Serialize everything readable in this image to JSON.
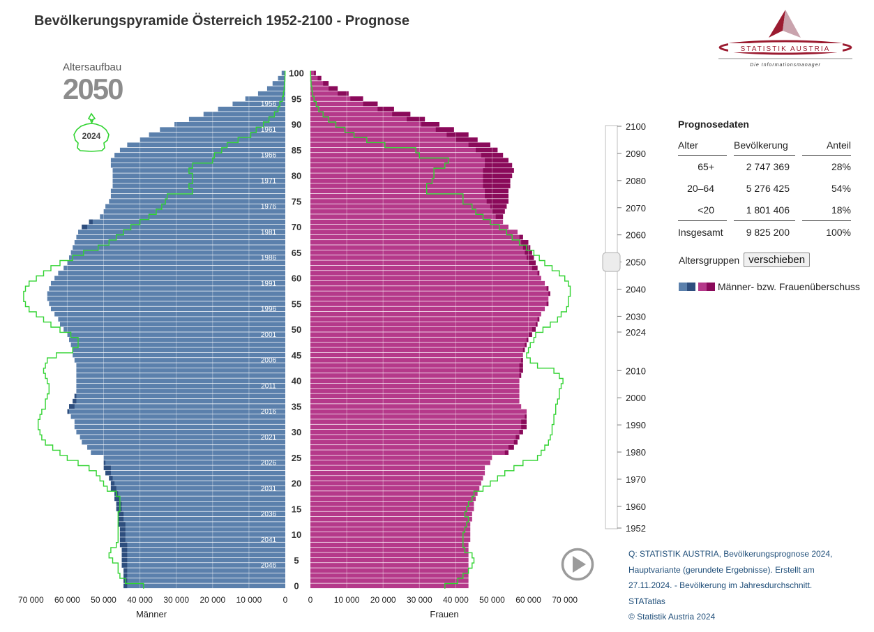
{
  "title": "Bevölkerungspyramide Österreich 1952-2100 - Prognose",
  "logo": {
    "name": "STATISTIK AUSTRIA",
    "tagline": "Die Informationsmanager"
  },
  "colors": {
    "male": "#5b80ac",
    "male_surplus": "#2e4e7e",
    "female": "#b5398a",
    "female_surplus": "#8a0a5a",
    "outline": "#31d331"
  },
  "chart_data": {
    "type": "bar",
    "subtype": "population-pyramid",
    "title": "Bevölkerungspyramide Österreich 1952-2100 - Prognose",
    "header_label": "Altersaufbau",
    "year": "2050",
    "comparison_year": "2024",
    "xlabel_left": "Männer",
    "xlabel_right": "Frauen",
    "xlim": [
      0,
      70000
    ],
    "x_ticks_left": [
      "70 000",
      "60 000",
      "50 000",
      "40 000",
      "30 000",
      "20 000",
      "10 000",
      "0"
    ],
    "x_ticks_right": [
      "0",
      "10 000",
      "20 000",
      "30 000",
      "40 000",
      "50 000",
      "60 000",
      "70 000"
    ],
    "age_ticks": [
      "100",
      "95",
      "90",
      "85",
      "80",
      "75",
      "70",
      "65",
      "60",
      "55",
      "50",
      "45",
      "40",
      "35",
      "30",
      "25",
      "20",
      "15",
      "10",
      "5",
      "0"
    ],
    "birth_year_labels": [
      "1956",
      "1961",
      "1966",
      "1971",
      "1976",
      "1981",
      "1986",
      "1991",
      "1996",
      "2001",
      "2006",
      "2011",
      "2016",
      "2021",
      "2026",
      "2031",
      "2036",
      "2041",
      "2046"
    ],
    "male_values": [
      44500,
      44500,
      44500,
      44500,
      45000,
      45000,
      45000,
      45000,
      45500,
      45500,
      45500,
      45500,
      46000,
      46000,
      46000,
      46500,
      46500,
      47000,
      47000,
      48000,
      48000,
      48500,
      49500,
      50000,
      50000,
      50000,
      53500,
      54500,
      56000,
      56500,
      57500,
      58000,
      58000,
      59000,
      60000,
      59500,
      58500,
      58000,
      57500,
      57500,
      57500,
      57500,
      57500,
      57500,
      58000,
      58500,
      58500,
      59000,
      59500,
      60000,
      61000,
      62000,
      62500,
      63500,
      64500,
      65000,
      65500,
      65500,
      65000,
      64500,
      63500,
      62500,
      61000,
      60000,
      59500,
      59000,
      58500,
      58000,
      57500,
      57000,
      56000,
      54000,
      51000,
      50000,
      49500,
      48500,
      48000,
      48000,
      47500,
      47500,
      47500,
      47500,
      48000,
      48000,
      47000,
      45500,
      43500,
      40000,
      37500,
      34500,
      30500,
      26500,
      22500,
      18500,
      14500,
      11000,
      7500,
      5000,
      3500,
      2000,
      1000
    ],
    "female_values": [
      43500,
      43500,
      43500,
      43500,
      43500,
      43500,
      43500,
      43500,
      43500,
      44000,
      44000,
      44000,
      44000,
      44500,
      44500,
      45000,
      45000,
      45500,
      46000,
      46500,
      47000,
      47500,
      48000,
      48000,
      49500,
      50000,
      54500,
      56000,
      57000,
      57500,
      58500,
      59500,
      59500,
      59500,
      59500,
      58000,
      57500,
      57500,
      57500,
      57500,
      57500,
      58000,
      58500,
      58500,
      58500,
      58500,
      59000,
      59500,
      60000,
      61000,
      62000,
      62500,
      63000,
      63500,
      64500,
      65500,
      65500,
      66000,
      65500,
      64500,
      63500,
      63000,
      62500,
      62000,
      61500,
      61000,
      60500,
      60000,
      58500,
      57000,
      54500,
      53000,
      53000,
      53500,
      54000,
      54500,
      54500,
      54500,
      55000,
      55000,
      55500,
      56000,
      55500,
      54500,
      53000,
      51500,
      49500,
      46000,
      43500,
      39500,
      35500,
      31500,
      27500,
      23000,
      18500,
      14500,
      10500,
      7500,
      5000,
      3000,
      1500
    ],
    "compare_male_2024": [
      39000,
      44000,
      45500,
      46000,
      46000,
      47500,
      48500,
      48000,
      46500,
      46000,
      46000,
      46000,
      46000,
      46000,
      46000,
      45500,
      45500,
      45500,
      46500,
      49000,
      50000,
      51000,
      52000,
      54000,
      57000,
      60000,
      62000,
      64000,
      66000,
      67000,
      67500,
      68000,
      68000,
      67500,
      67000,
      66000,
      66000,
      65500,
      65000,
      65000,
      65500,
      66000,
      66500,
      66000,
      65500,
      63000,
      58500,
      57000,
      57000,
      59000,
      62000,
      64500,
      66500,
      68500,
      70500,
      71500,
      72000,
      72000,
      71500,
      70500,
      68500,
      66500,
      64500,
      62000,
      58500,
      55500,
      51500,
      48500,
      46500,
      44500,
      42500,
      40000,
      37500,
      35500,
      34000,
      33000,
      32500,
      25500,
      26500,
      25500,
      25500,
      26500,
      25500,
      20000,
      19500,
      17500,
      16000,
      13000,
      9500,
      8000,
      6000,
      4500,
      3000,
      2000,
      1500,
      800,
      500,
      300,
      200,
      100,
      50
    ],
    "compare_female_2024": [
      37000,
      40500,
      42000,
      43500,
      44500,
      45000,
      44500,
      42500,
      42000,
      42000,
      42000,
      42500,
      43000,
      43500,
      42500,
      43000,
      43500,
      44500,
      45000,
      47500,
      49500,
      51500,
      53500,
      56000,
      58500,
      62500,
      63500,
      64500,
      65500,
      66000,
      66500,
      66500,
      67000,
      67000,
      67500,
      67500,
      68000,
      68500,
      68500,
      69000,
      69500,
      68500,
      67000,
      62500,
      60500,
      59500,
      60000,
      60500,
      61500,
      62000,
      64000,
      66000,
      68000,
      69000,
      70500,
      71000,
      71000,
      71500,
      71500,
      71000,
      70000,
      68500,
      66500,
      64500,
      63000,
      61500,
      59500,
      57500,
      55500,
      54000,
      52000,
      49500,
      47500,
      45500,
      44500,
      42000,
      42000,
      32000,
      32000,
      33500,
      34000,
      34000,
      37000,
      38000,
      30000,
      29000,
      20500,
      15500,
      12000,
      9500,
      7000,
      5000,
      3500,
      2300,
      1600,
      1000,
      600,
      400,
      200,
      100,
      50
    ]
  },
  "slider": {
    "years": [
      "2100",
      "2090",
      "2080",
      "2070",
      "2060",
      "2050",
      "2040",
      "2030",
      "2024",
      "2010",
      "2000",
      "1990",
      "1980",
      "1970",
      "1960",
      "1952"
    ],
    "min_year": 1952,
    "max_year": 2100,
    "current_year": 2050
  },
  "prognose": {
    "heading": "Prognosedaten",
    "columns": [
      "Alter",
      "Bevölkerung",
      "Anteil"
    ],
    "rows": [
      {
        "alter": "65+",
        "bev": "2 747 369",
        "anteil": "28%"
      },
      {
        "alter": "20–64",
        "bev": "5 276 425",
        "anteil": "54%"
      },
      {
        "alter": "<20",
        "bev": "1 801 406",
        "anteil": "18%"
      }
    ],
    "total": {
      "alter": "Insgesamt",
      "bev": "9 825 200",
      "anteil": "100%"
    }
  },
  "controls": {
    "altersgruppen_label": "Altersgruppen",
    "shift_button": "verschieben"
  },
  "legend": {
    "label": "Männer- bzw. Frauenüberschuss"
  },
  "source": {
    "lines": [
      "Q: STATISTIK AUSTRIA, Bevölkerungsprognose 2024,",
      "Hauptvariante (gerundete Ergebnisse). Erstellt am",
      "27.11.2024. - Bevölkerung im Jahresdurchschnitt.",
      "STATatlas",
      "© Statistik Austria 2024"
    ]
  }
}
